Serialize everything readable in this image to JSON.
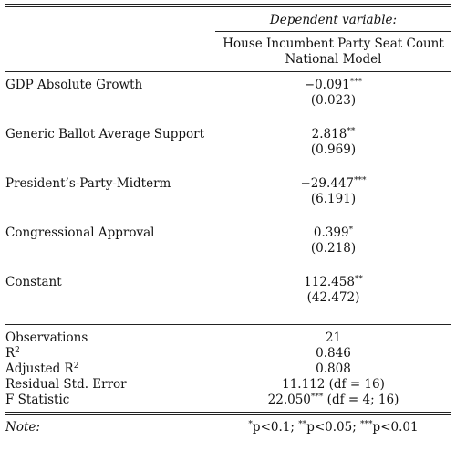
{
  "header": {
    "dependent_variable": "Dependent variable:",
    "model_line1": "House Incumbent Party Seat Count",
    "model_line2": "National Model"
  },
  "rows": [
    {
      "label": "GDP Absolute Growth",
      "coef": "−0.091",
      "stars": "***",
      "se": "(0.023)"
    },
    {
      "label": "Generic Ballot Average Support",
      "coef": "2.818",
      "stars": "**",
      "se": "(0.969)"
    },
    {
      "label": "President’s-Party-Midterm",
      "coef": "−29.447",
      "stars": "***",
      "se": "(6.191)"
    },
    {
      "label": "Congressional Approval",
      "coef": "0.399",
      "stars": "*",
      "se": "(0.218)"
    },
    {
      "label": "Constant",
      "coef": "112.458",
      "stars": "**",
      "se": "(42.472)"
    }
  ],
  "stats": {
    "observations_label": "Observations",
    "observations_value": "21",
    "r2_label": "R",
    "r2_sup": "2",
    "r2_value": "0.846",
    "adj_r2_label": "Adjusted R",
    "adj_r2_sup": "2",
    "adj_r2_value": "0.808",
    "rse_label": "Residual Std. Error",
    "rse_value": "11.112 (df = 16)",
    "f_label": "F Statistic",
    "f_value_num": "22.050",
    "f_value_stars": "***",
    "f_value_df": " (df = 4; 16)"
  },
  "note": {
    "label": "Note:",
    "s1": "*",
    "t1": "p<0.1; ",
    "s2": "**",
    "t2": "p<0.05; ",
    "s3": "***",
    "t3": "p<0.01"
  }
}
